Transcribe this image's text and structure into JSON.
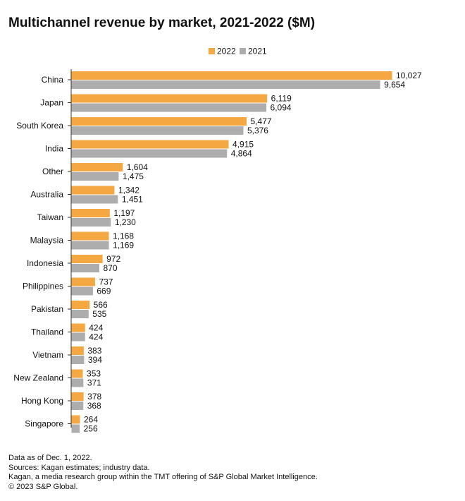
{
  "title": "Multichannel revenue by market, 2021-2022 ($M)",
  "colors": {
    "2022": "#F5A742",
    "2021": "#ADADAD",
    "axis": "#333333"
  },
  "chart_data": {
    "type": "bar",
    "orientation": "horizontal",
    "title": "Multichannel revenue by market, 2021-2022 ($M)",
    "legend_position": "top-right",
    "grid": false,
    "xlim": [
      0,
      10027
    ],
    "categories": [
      "China",
      "Japan",
      "South Korea",
      "India",
      "Other",
      "Australia",
      "Taiwan",
      "Malaysia",
      "Indonesia",
      "Philippines",
      "Pakistan",
      "Thailand",
      "Vietnam",
      "New Zealand",
      "Hong Kong",
      "Singapore"
    ],
    "series": [
      {
        "name": "2022",
        "color": "#F5A742",
        "values": [
          10027,
          6119,
          5477,
          4915,
          1604,
          1342,
          1197,
          1168,
          972,
          737,
          566,
          424,
          383,
          353,
          378,
          264
        ],
        "labels": [
          "10,027",
          "6,119",
          "5,477",
          "4,915",
          "1,604",
          "1,342",
          "1,197",
          "1,168",
          "972",
          "737",
          "566",
          "424",
          "383",
          "353",
          "378",
          "264"
        ]
      },
      {
        "name": "2021",
        "color": "#ADADAD",
        "values": [
          9654,
          6094,
          5376,
          4864,
          1475,
          1451,
          1230,
          1169,
          870,
          669,
          535,
          424,
          394,
          371,
          368,
          256
        ],
        "labels": [
          "9,654",
          "6,094",
          "5,376",
          "4,864",
          "1,475",
          "1,451",
          "1,230",
          "1,169",
          "870",
          "669",
          "535",
          "424",
          "394",
          "371",
          "368",
          "256"
        ]
      }
    ]
  },
  "footer": {
    "line1": "Data as of  Dec. 1, 2022.",
    "line2": "Sources: Kagan estimates; industry data.",
    "line3": "Kagan, a media research group within the TMT offering of S&P Global Market Intelligence.",
    "line4": "© 2023 S&P Global."
  }
}
